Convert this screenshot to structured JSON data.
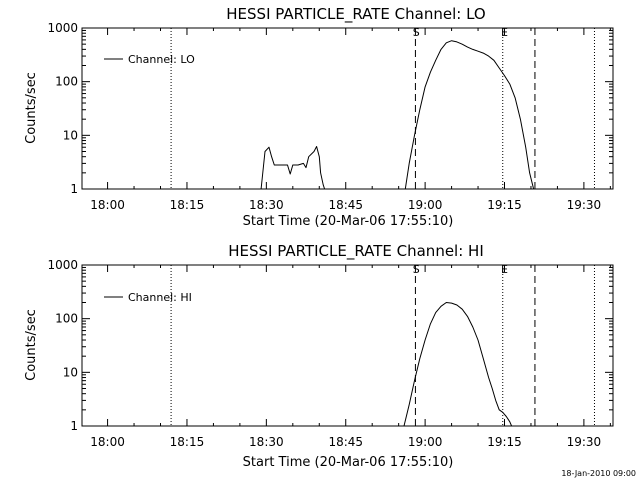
{
  "footer": "18-Jan-2010 09:00",
  "chart_data": [
    {
      "type": "line",
      "title": "HESSI PARTICLE_RATE Channel: LO",
      "xlabel": "Start Time (20-Mar-06 17:55:10)",
      "ylabel": "Counts/sec",
      "yscale": "log",
      "ylim": [
        1,
        1000
      ],
      "xlim": [
        "17:55:10",
        "19:35:30"
      ],
      "xticks": [
        "18:00",
        "18:15",
        "18:30",
        "18:45",
        "19:00",
        "19:15",
        "19:30"
      ],
      "yticks": [
        "1",
        "10",
        "100",
        "1000"
      ],
      "legend": {
        "position": "top-left"
      },
      "series": [
        {
          "name": "Channel: LO",
          "x": [
            "18:29:00",
            "18:29:45",
            "18:30:30",
            "18:31:00",
            "18:31:30",
            "18:32:00",
            "18:33:00",
            "18:34:00",
            "18:34:30",
            "18:35:00",
            "18:36:00",
            "18:37:00",
            "18:37:30",
            "18:38:00",
            "18:39:00",
            "18:39:30",
            "18:40:00",
            "18:40:15",
            "18:40:45",
            "18:41:00",
            "18:56:15",
            "18:57:00",
            "18:58:00",
            "18:59:00",
            "19:00:00",
            "19:01:00",
            "19:02:00",
            "19:03:00",
            "19:04:00",
            "19:05:00",
            "19:06:00",
            "19:07:00",
            "19:08:00",
            "19:09:00",
            "19:10:00",
            "19:11:00",
            "19:12:00",
            "19:13:00",
            "19:14:00",
            "19:15:00",
            "19:16:00",
            "19:17:00",
            "19:18:00",
            "19:19:00",
            "19:19:45",
            "19:20:30"
          ],
          "y": [
            1,
            5,
            6,
            4,
            2.8,
            2.8,
            2.8,
            2.8,
            1.9,
            2.8,
            2.8,
            3,
            2.5,
            4,
            5,
            6.2,
            4,
            2,
            1.2,
            1,
            1,
            3,
            10,
            30,
            80,
            150,
            250,
            400,
            530,
            580,
            550,
            500,
            440,
            400,
            370,
            340,
            300,
            250,
            180,
            130,
            90,
            50,
            20,
            6,
            2,
            1
          ]
        }
      ],
      "vlines": {
        "dotted": [
          "18:12:00",
          "19:14:40",
          "19:32:00"
        ],
        "dashed": [
          "18:58:10",
          "19:20:45"
        ]
      },
      "markers": [
        {
          "label": "S",
          "x": "18:58:20"
        },
        {
          "label": "E",
          "x": "19:15:00"
        }
      ]
    },
    {
      "type": "line",
      "title": "HESSI PARTICLE_RATE Channel: HI",
      "xlabel": "Start Time (20-Mar-06 17:55:10)",
      "ylabel": "Counts/sec",
      "yscale": "log",
      "ylim": [
        1,
        1000
      ],
      "xlim": [
        "17:55:10",
        "19:35:30"
      ],
      "xticks": [
        "18:00",
        "18:15",
        "18:30",
        "18:45",
        "19:00",
        "19:15",
        "19:30"
      ],
      "yticks": [
        "1",
        "10",
        "100",
        "1000"
      ],
      "legend": {
        "position": "top-left"
      },
      "series": [
        {
          "name": "Channel: HI",
          "x": [
            "18:56:00",
            "18:57:00",
            "18:58:00",
            "18:59:00",
            "19:00:00",
            "19:01:00",
            "19:02:00",
            "19:03:00",
            "19:04:00",
            "19:05:00",
            "19:06:00",
            "19:07:00",
            "19:08:00",
            "19:09:00",
            "19:10:00",
            "19:11:00",
            "19:12:00",
            "19:12:40",
            "19:13:20",
            "19:14:00",
            "19:14:40",
            "19:15:20",
            "19:16:00",
            "19:16:20"
          ],
          "y": [
            1,
            2.5,
            7,
            18,
            40,
            80,
            130,
            170,
            200,
            195,
            180,
            150,
            110,
            70,
            40,
            18,
            8,
            5,
            3,
            2,
            1.8,
            1.5,
            1.2,
            1
          ]
        }
      ],
      "vlines": {
        "dotted": [
          "18:12:00",
          "19:14:40",
          "19:32:00"
        ],
        "dashed": [
          "18:58:10",
          "19:20:45"
        ]
      },
      "markers": [
        {
          "label": "S",
          "x": "18:58:20"
        },
        {
          "label": "E",
          "x": "19:15:00"
        }
      ]
    }
  ]
}
